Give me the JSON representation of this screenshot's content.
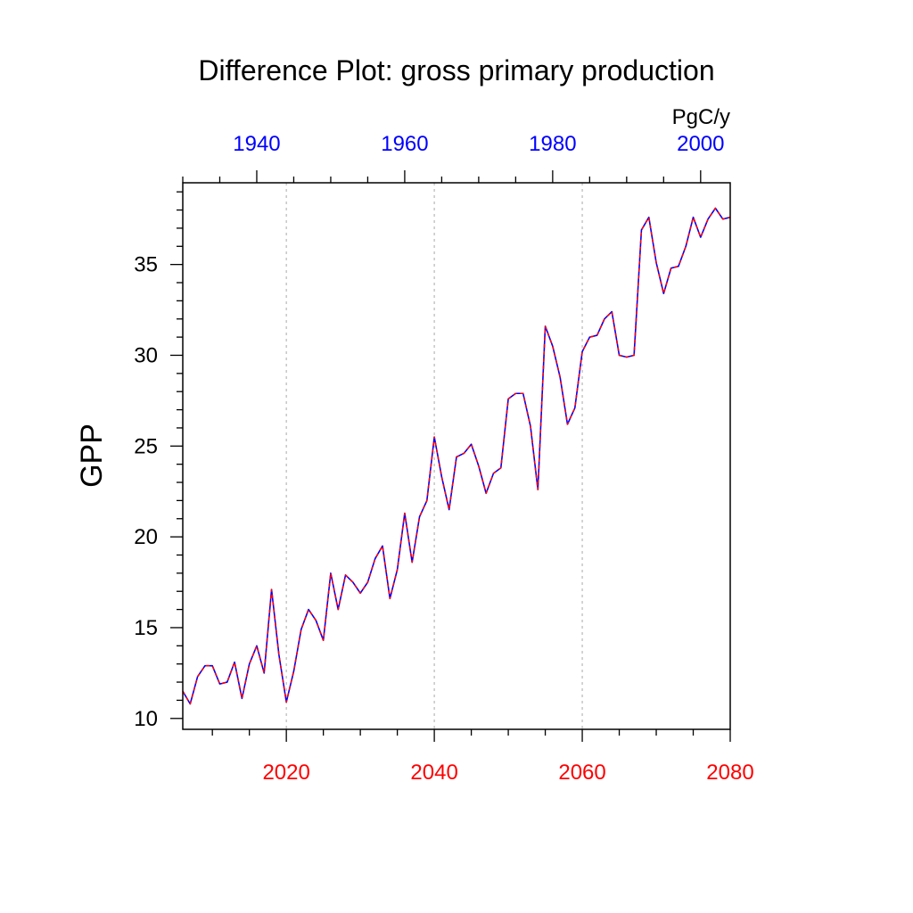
{
  "chart_data": {
    "type": "line",
    "title": "Difference Plot: gross primary production",
    "ylabel": "GPP",
    "units": "PgC/y",
    "ylim": [
      9.4,
      39.5
    ],
    "yticks": [
      10,
      15,
      20,
      25,
      30,
      35
    ],
    "bottom_axis": {
      "xlim": [
        2006,
        2080
      ],
      "ticks": [
        2020,
        2040,
        2060,
        2080
      ],
      "color": "#ff0000"
    },
    "top_axis": {
      "xlim": [
        1930,
        2004
      ],
      "ticks": [
        1940,
        1960,
        1980,
        2000
      ],
      "color": "#0000ff"
    },
    "grid": "vertical dotted at bottom-axis ticks",
    "legend": "none",
    "series": [
      {
        "colors": [
          "#0000ff",
          "#ff0000"
        ],
        "style": "dashed overlay",
        "x": [
          2006,
          2007,
          2008,
          2009,
          2010,
          2011,
          2012,
          2013,
          2014,
          2015,
          2016,
          2017,
          2018,
          2019,
          2020,
          2021,
          2022,
          2023,
          2024,
          2025,
          2026,
          2027,
          2028,
          2029,
          2030,
          2031,
          2032,
          2033,
          2034,
          2035,
          2036,
          2037,
          2038,
          2039,
          2040,
          2041,
          2042,
          2043,
          2044,
          2045,
          2046,
          2047,
          2048,
          2049,
          2050,
          2051,
          2052,
          2053,
          2054,
          2055,
          2056,
          2057,
          2058,
          2059,
          2060,
          2061,
          2062,
          2063,
          2064,
          2065,
          2066,
          2067,
          2068,
          2069,
          2070,
          2071,
          2072,
          2073,
          2074,
          2075,
          2076,
          2077,
          2078,
          2079,
          2080
        ],
        "y": [
          11.5,
          10.8,
          12.3,
          12.9,
          12.9,
          11.9,
          12.0,
          13.1,
          11.1,
          13.0,
          14.0,
          12.5,
          17.1,
          13.5,
          10.9,
          12.6,
          14.9,
          16.0,
          15.4,
          14.3,
          18.0,
          16.0,
          17.9,
          17.5,
          16.9,
          17.5,
          18.8,
          19.5,
          16.6,
          18.2,
          21.3,
          18.6,
          21.1,
          22.0,
          25.5,
          23.3,
          21.5,
          24.4,
          24.6,
          25.1,
          23.9,
          22.4,
          23.5,
          23.8,
          27.6,
          27.9,
          27.9,
          26.1,
          22.6,
          31.6,
          30.5,
          28.8,
          26.2,
          27.1,
          30.2,
          31.0,
          31.1,
          32.0,
          32.4,
          30.0,
          29.9,
          30.0,
          36.9,
          37.6,
          35.1,
          33.4,
          34.8,
          34.9,
          36.0,
          37.6,
          36.5,
          37.5,
          38.1,
          37.5,
          37.6
        ]
      }
    ]
  }
}
